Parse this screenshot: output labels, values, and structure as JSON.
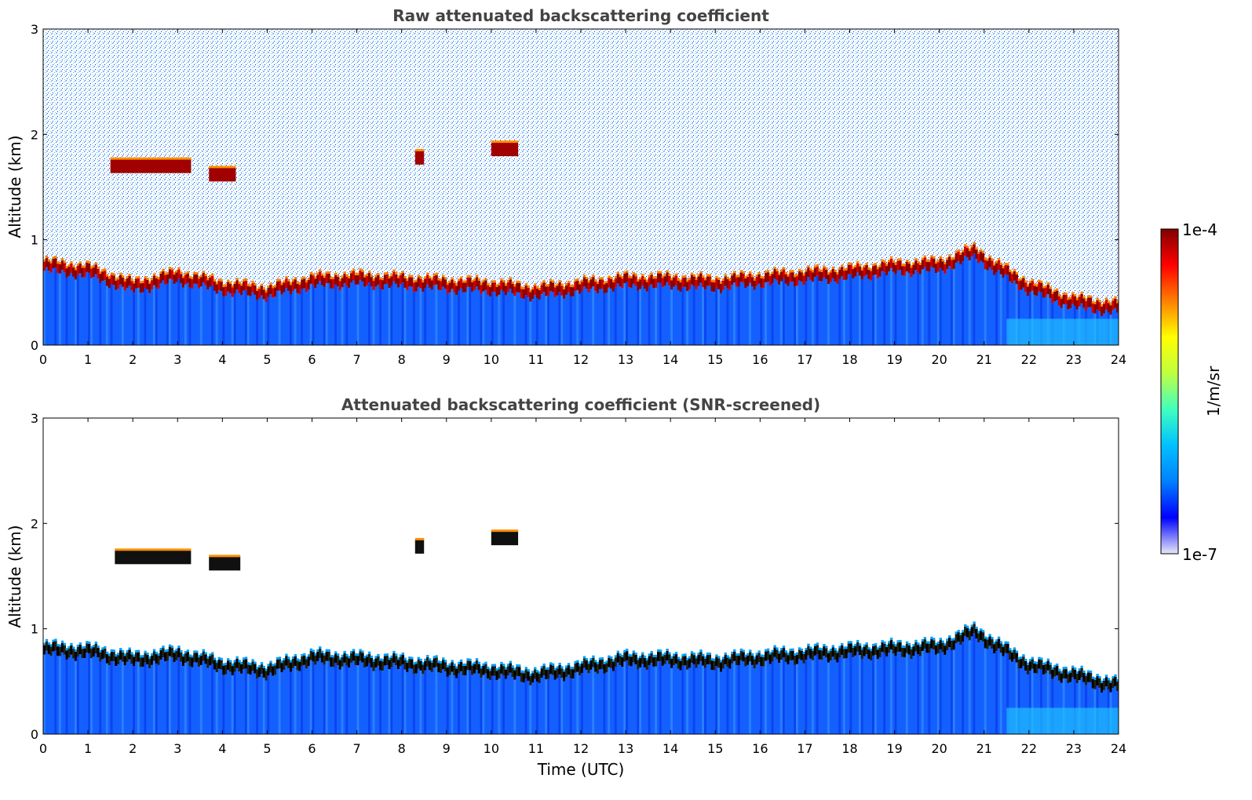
{
  "chart_data": [
    {
      "type": "heatmap",
      "title": "Raw attenuated backscattering coefficient",
      "xlabel": "",
      "ylabel": "Altitude (km)",
      "xlim": [
        0,
        24
      ],
      "ylim": [
        0,
        3
      ],
      "xticks": [
        "0",
        "1",
        "2",
        "3",
        "4",
        "5",
        "6",
        "7",
        "8",
        "9",
        "10",
        "11",
        "12",
        "13",
        "14",
        "15",
        "16",
        "17",
        "18",
        "19",
        "20",
        "21",
        "22",
        "23",
        "24"
      ],
      "yticks": [
        "0",
        "1",
        "2",
        "3"
      ],
      "boundary_layer_top_km": [
        {
          "t": 0,
          "h": 0.75
        },
        {
          "t": 1,
          "h": 0.7
        },
        {
          "t": 2,
          "h": 0.55
        },
        {
          "t": 3,
          "h": 0.65
        },
        {
          "t": 4,
          "h": 0.55
        },
        {
          "t": 5,
          "h": 0.5
        },
        {
          "t": 6,
          "h": 0.6
        },
        {
          "t": 7,
          "h": 0.62
        },
        {
          "t": 8,
          "h": 0.6
        },
        {
          "t": 9,
          "h": 0.57
        },
        {
          "t": 10,
          "h": 0.55
        },
        {
          "t": 11,
          "h": 0.5
        },
        {
          "t": 12,
          "h": 0.55
        },
        {
          "t": 13,
          "h": 0.6
        },
        {
          "t": 14,
          "h": 0.6
        },
        {
          "t": 15,
          "h": 0.58
        },
        {
          "t": 16,
          "h": 0.62
        },
        {
          "t": 17,
          "h": 0.65
        },
        {
          "t": 18,
          "h": 0.68
        },
        {
          "t": 19,
          "h": 0.73
        },
        {
          "t": 20,
          "h": 0.75
        },
        {
          "t": 20.8,
          "h": 0.88
        },
        {
          "t": 21.2,
          "h": 0.75
        },
        {
          "t": 22,
          "h": 0.55
        },
        {
          "t": 23,
          "h": 0.4
        },
        {
          "t": 24,
          "h": 0.35
        }
      ],
      "cloud_layers": [
        {
          "t_start": 1.5,
          "t_end": 3.3,
          "alt_km": 1.7
        },
        {
          "t_start": 3.7,
          "t_end": 4.3,
          "alt_km": 1.62
        },
        {
          "t_start": 8.3,
          "t_end": 8.5,
          "alt_km": 1.78
        },
        {
          "t_start": 10.0,
          "t_end": 10.6,
          "alt_km": 1.86
        }
      ]
    },
    {
      "type": "heatmap",
      "title": "Attenuated backscattering coefficient (SNR-screened)",
      "xlabel": "Time (UTC)",
      "ylabel": "Altitude (km)",
      "xlim": [
        0,
        24
      ],
      "ylim": [
        0,
        3
      ],
      "xticks": [
        "0",
        "1",
        "2",
        "3",
        "4",
        "5",
        "6",
        "7",
        "8",
        "9",
        "10",
        "11",
        "12",
        "13",
        "14",
        "15",
        "16",
        "17",
        "18",
        "19",
        "20",
        "21",
        "22",
        "23",
        "24"
      ],
      "yticks": [
        "0",
        "1",
        "2",
        "3"
      ],
      "boundary_layer_top_km": [
        {
          "t": 0,
          "h": 0.8
        },
        {
          "t": 1,
          "h": 0.78
        },
        {
          "t": 2,
          "h": 0.7
        },
        {
          "t": 3,
          "h": 0.75
        },
        {
          "t": 4,
          "h": 0.65
        },
        {
          "t": 5,
          "h": 0.6
        },
        {
          "t": 6,
          "h": 0.72
        },
        {
          "t": 7,
          "h": 0.7
        },
        {
          "t": 8,
          "h": 0.67
        },
        {
          "t": 9,
          "h": 0.63
        },
        {
          "t": 10,
          "h": 0.6
        },
        {
          "t": 11,
          "h": 0.55
        },
        {
          "t": 12,
          "h": 0.62
        },
        {
          "t": 13,
          "h": 0.7
        },
        {
          "t": 14,
          "h": 0.7
        },
        {
          "t": 15,
          "h": 0.68
        },
        {
          "t": 16,
          "h": 0.72
        },
        {
          "t": 17,
          "h": 0.75
        },
        {
          "t": 18,
          "h": 0.78
        },
        {
          "t": 19,
          "h": 0.8
        },
        {
          "t": 20,
          "h": 0.82
        },
        {
          "t": 20.8,
          "h": 0.97
        },
        {
          "t": 21.2,
          "h": 0.85
        },
        {
          "t": 22,
          "h": 0.65
        },
        {
          "t": 23,
          "h": 0.55
        },
        {
          "t": 24,
          "h": 0.45
        }
      ],
      "cloud_layers": [
        {
          "t_start": 1.6,
          "t_end": 3.3,
          "alt_km": 1.68
        },
        {
          "t_start": 3.7,
          "t_end": 4.4,
          "alt_km": 1.62
        },
        {
          "t_start": 8.3,
          "t_end": 8.5,
          "alt_km": 1.78
        },
        {
          "t_start": 10.0,
          "t_end": 10.6,
          "alt_km": 1.86
        }
      ]
    }
  ],
  "colorbar": {
    "max_label": "1e-4",
    "min_label": "1e-7",
    "unit": "1/m/sr",
    "colors": [
      "#e8e8f8",
      "#0000ff",
      "#0080ff",
      "#00c0ff",
      "#40ffc0",
      "#c0ff40",
      "#ffff00",
      "#ff8000",
      "#ff0000",
      "#800000"
    ]
  }
}
